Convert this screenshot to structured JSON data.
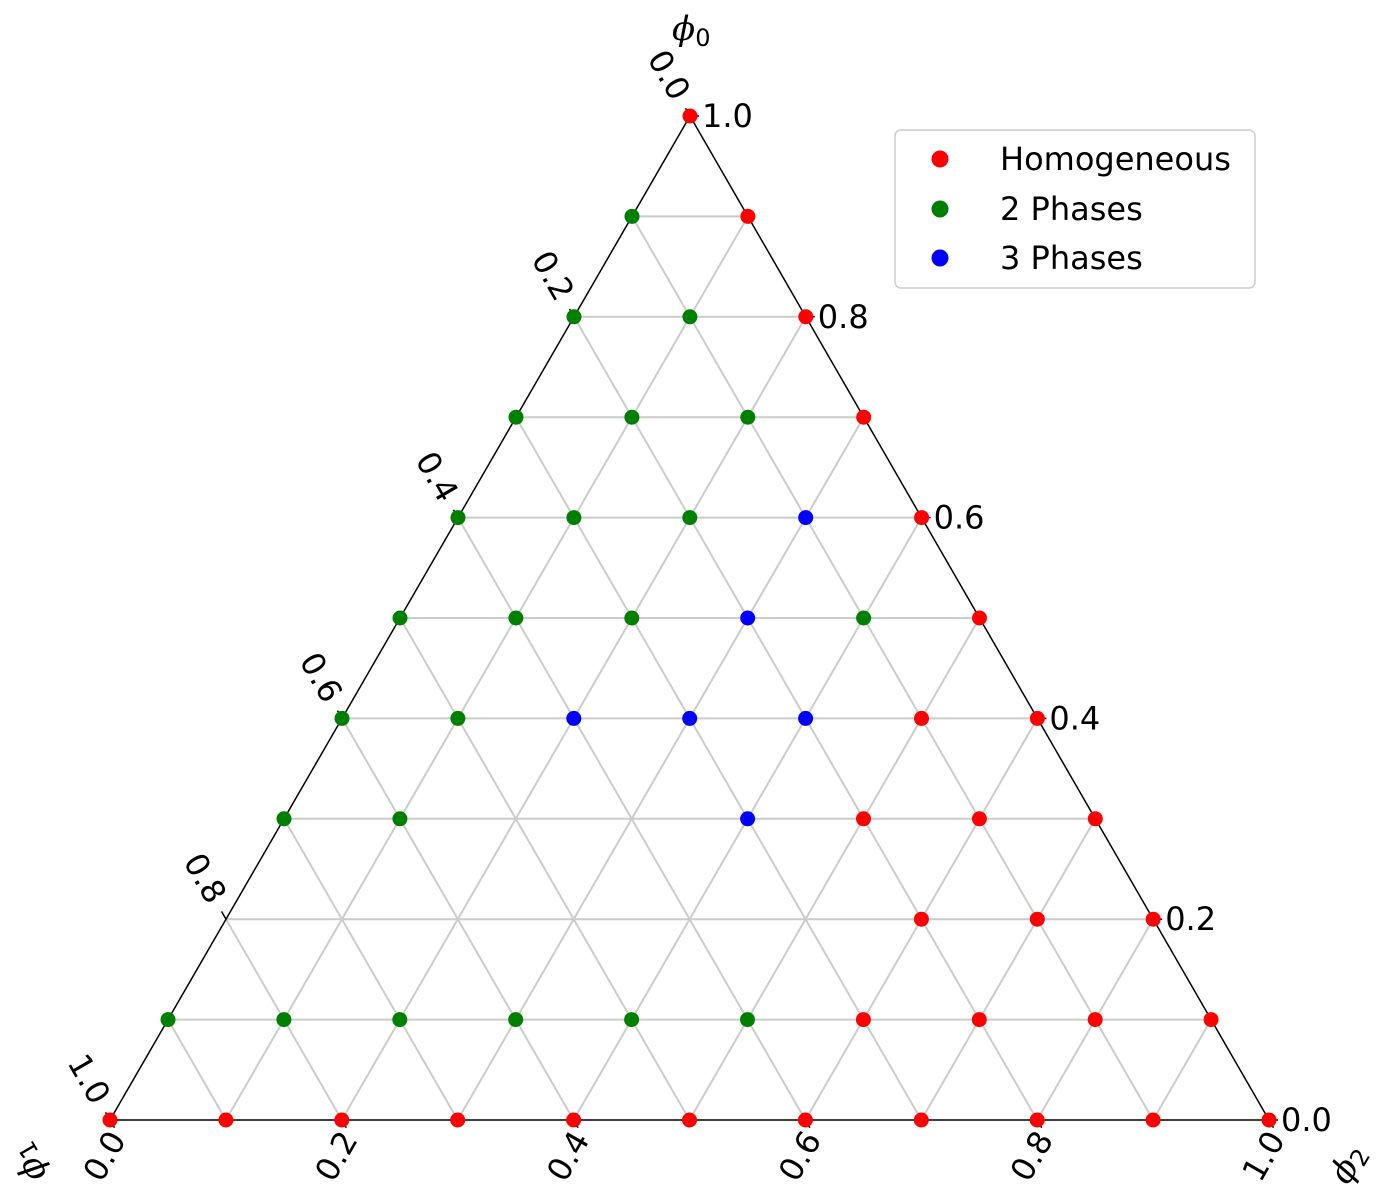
{
  "chart_data": {
    "type": "scatter",
    "subtype": "ternary",
    "axes": {
      "top": {
        "label": "ϕ",
        "subscript": "0"
      },
      "left": {
        "label": "ϕ",
        "subscript": "1"
      },
      "right": {
        "label": "ϕ",
        "subscript": "2"
      }
    },
    "ticks": {
      "phi0": [
        "0.0",
        "0.2",
        "0.4",
        "0.6",
        "0.8",
        "1.0"
      ],
      "phi1": [
        "0.0",
        "0.2",
        "0.4",
        "0.6",
        "0.8",
        "1.0"
      ],
      "phi2": [
        "0.0",
        "0.2",
        "0.4",
        "0.6",
        "0.8",
        "1.0"
      ]
    },
    "grid": true,
    "grid_step": 0.1,
    "legend": {
      "placement": "top-right"
    },
    "series": [
      {
        "name": "Homogeneous",
        "color": "#ff0000",
        "points": [
          [
            1.0,
            0.0,
            0.0
          ],
          [
            0.9,
            0.0,
            0.1
          ],
          [
            0.8,
            0.0,
            0.2
          ],
          [
            0.7,
            0.0,
            0.3
          ],
          [
            0.6,
            0.0,
            0.4
          ],
          [
            0.5,
            0.0,
            0.5
          ],
          [
            0.4,
            0.0,
            0.6
          ],
          [
            0.4,
            0.1,
            0.5
          ],
          [
            0.3,
            0.0,
            0.7
          ],
          [
            0.3,
            0.1,
            0.6
          ],
          [
            0.3,
            0.2,
            0.5
          ],
          [
            0.2,
            0.0,
            0.8
          ],
          [
            0.2,
            0.1,
            0.7
          ],
          [
            0.2,
            0.2,
            0.6
          ],
          [
            0.1,
            0.0,
            0.9
          ],
          [
            0.1,
            0.1,
            0.8
          ],
          [
            0.1,
            0.2,
            0.7
          ],
          [
            0.1,
            0.3,
            0.6
          ],
          [
            0.0,
            0.0,
            1.0
          ],
          [
            0.0,
            0.1,
            0.9
          ],
          [
            0.0,
            0.2,
            0.8
          ],
          [
            0.0,
            0.3,
            0.7
          ],
          [
            0.0,
            0.4,
            0.6
          ],
          [
            0.0,
            0.5,
            0.5
          ],
          [
            0.0,
            0.6,
            0.4
          ],
          [
            0.0,
            0.7,
            0.3
          ],
          [
            0.0,
            0.8,
            0.2
          ],
          [
            0.0,
            0.9,
            0.1
          ],
          [
            0.0,
            1.0,
            0.0
          ]
        ]
      },
      {
        "name": "2 Phases",
        "color": "#008000",
        "points": [
          [
            0.9,
            0.1,
            0.0
          ],
          [
            0.8,
            0.2,
            0.0
          ],
          [
            0.8,
            0.1,
            0.1
          ],
          [
            0.7,
            0.3,
            0.0
          ],
          [
            0.7,
            0.2,
            0.1
          ],
          [
            0.7,
            0.1,
            0.2
          ],
          [
            0.6,
            0.4,
            0.0
          ],
          [
            0.6,
            0.3,
            0.1
          ],
          [
            0.6,
            0.2,
            0.2
          ],
          [
            0.5,
            0.5,
            0.0
          ],
          [
            0.5,
            0.4,
            0.1
          ],
          [
            0.5,
            0.3,
            0.2
          ],
          [
            0.5,
            0.1,
            0.4
          ],
          [
            0.4,
            0.6,
            0.0
          ],
          [
            0.4,
            0.5,
            0.1
          ],
          [
            0.3,
            0.7,
            0.0
          ],
          [
            0.3,
            0.6,
            0.1
          ],
          [
            0.1,
            0.9,
            0.0
          ],
          [
            0.1,
            0.8,
            0.1
          ],
          [
            0.1,
            0.7,
            0.2
          ],
          [
            0.1,
            0.6,
            0.3
          ],
          [
            0.1,
            0.5,
            0.4
          ],
          [
            0.1,
            0.4,
            0.5
          ]
        ]
      },
      {
        "name": "3 Phases",
        "color": "#0000ff",
        "points": [
          [
            0.6,
            0.1,
            0.3
          ],
          [
            0.5,
            0.2,
            0.3
          ],
          [
            0.4,
            0.4,
            0.2
          ],
          [
            0.4,
            0.3,
            0.3
          ],
          [
            0.4,
            0.2,
            0.4
          ],
          [
            0.3,
            0.3,
            0.4
          ]
        ]
      }
    ]
  }
}
